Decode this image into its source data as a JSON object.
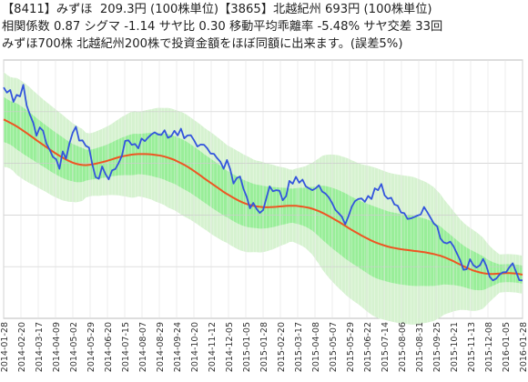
{
  "header": {
    "stock_a": "【8411】みずほ",
    "price_a": "209.3円",
    "unit_a": "(100株単位)",
    "stock_b": "【3865】北越紀州",
    "price_b": "693円",
    "unit_b": "(100株単位)",
    "correlation": "相関係数 0.87",
    "sigma": "シグマ -1.14",
    "spread_ratio": "サヤ比 0.30",
    "ma_deviation": "移動平均乖離率 -5.48%",
    "cross_count": "サヤ交差 33回",
    "note": "みずほ700株 北越紀州200株で投資金額をほぼ同額に出来ます。(誤差5%)"
  },
  "chart_data": {
    "type": "line",
    "title": "",
    "xlabel": "",
    "ylabel": "",
    "ylim": [
      0,
      1
    ],
    "grid": true,
    "x_tick_labels": [
      "2014-01-28",
      "2014-02-20",
      "2014-03-17",
      "2014-04-09",
      "2014-05-02",
      "2014-05-29",
      "2014-06-20",
      "2014-07-15",
      "2014-08-07",
      "2014-08-29",
      "2014-09-24",
      "2014-10-20",
      "2014-11-12",
      "2014-12-05",
      "2015-01-05",
      "2015-01-28",
      "2015-02-20",
      "2015-03-17",
      "2015-04-08",
      "2015-05-07",
      "2015-05-29",
      "2015-06-22",
      "2015-07-14",
      "2015-08-06",
      "2015-08-31",
      "2015-09-25",
      "2015-10-21",
      "2015-11-13",
      "2015-12-08",
      "2016-01-05",
      "2016-01-28"
    ],
    "colors": {
      "spread": "#3355dd",
      "moving_average": "#ee5522",
      "band_inner": "#99ee99",
      "band_outer": "#d6f2d0",
      "grid": "#cccccc"
    },
    "series": [
      {
        "role": "spread",
        "values": [
          0.894,
          0.874,
          0.884,
          0.838,
          0.865,
          0.859,
          0.904,
          0.824,
          0.788,
          0.757,
          0.707,
          0.739,
          0.726,
          0.677,
          0.653,
          0.625,
          0.616,
          0.579,
          0.646,
          0.618,
          0.676,
          0.718,
          0.742,
          0.688,
          0.689,
          0.668,
          0.661,
          0.596,
          0.547,
          0.54,
          0.588,
          0.559,
          0.538,
          0.573,
          0.578,
          0.601,
          0.629,
          0.687,
          0.689,
          0.672,
          0.675,
          0.658,
          0.696,
          0.686,
          0.7,
          0.712,
          0.72,
          0.712,
          0.71,
          0.728,
          0.699,
          0.705,
          0.726,
          0.708,
          0.734,
          0.697,
          0.708,
          0.709,
          0.689,
          0.665,
          0.673,
          0.672,
          0.658,
          0.638,
          0.637,
          0.62,
          0.606,
          0.579,
          0.613,
          0.577,
          0.522,
          0.543,
          0.549,
          0.502,
          0.47,
          0.426,
          0.447,
          0.424,
          0.408,
          0.419,
          0.465,
          0.511,
          0.492,
          0.496,
          0.494,
          0.457,
          0.473,
          0.532,
          0.521,
          0.548,
          0.525,
          0.537,
          0.511,
          0.503,
          0.496,
          0.503,
          0.515,
          0.491,
          0.483,
          0.468,
          0.447,
          0.42,
          0.407,
          0.393,
          0.364,
          0.395,
          0.432,
          0.454,
          0.462,
          0.464,
          0.451,
          0.474,
          0.462,
          0.503,
          0.496,
          0.52,
          0.476,
          0.463,
          0.467,
          0.441,
          0.436,
          0.41,
          0.407,
          0.385,
          0.387,
          0.392,
          0.398,
          0.402,
          0.431,
          0.411,
          0.389,
          0.367,
          0.356,
          0.309,
          0.294,
          0.29,
          0.297,
          0.279,
          0.252,
          0.225,
          0.188,
          0.19,
          0.229,
          0.206,
          0.197,
          0.205,
          0.23,
          0.202,
          0.161,
          0.147,
          0.154,
          0.169,
          0.178,
          0.179,
          0.198,
          0.213,
          0.181,
          0.148,
          0.147
        ]
      },
      {
        "role": "moving_average",
        "values": [
          0.77,
          0.762,
          0.754,
          0.745,
          0.735,
          0.724,
          0.713,
          0.702,
          0.69,
          0.679,
          0.668,
          0.657,
          0.646,
          0.636,
          0.626,
          0.617,
          0.609,
          0.602,
          0.597,
          0.594,
          0.593,
          0.594,
          0.597,
          0.6,
          0.604,
          0.608,
          0.613,
          0.618,
          0.623,
          0.627,
          0.63,
          0.633,
          0.635,
          0.636,
          0.636,
          0.636,
          0.635,
          0.633,
          0.631,
          0.628,
          0.623,
          0.618,
          0.612,
          0.604,
          0.596,
          0.587,
          0.577,
          0.566,
          0.555,
          0.543,
          0.532,
          0.521,
          0.51,
          0.499,
          0.488,
          0.478,
          0.469,
          0.46,
          0.452,
          0.445,
          0.44,
          0.436,
          0.433,
          0.431,
          0.43,
          0.43,
          0.431,
          0.432,
          0.434,
          0.435,
          0.436,
          0.436,
          0.435,
          0.433,
          0.43,
          0.427,
          0.422,
          0.416,
          0.409,
          0.401,
          0.392,
          0.383,
          0.374,
          0.364,
          0.354,
          0.344,
          0.335,
          0.326,
          0.317,
          0.309,
          0.301,
          0.294,
          0.288,
          0.283,
          0.278,
          0.274,
          0.271,
          0.268,
          0.266,
          0.264,
          0.262,
          0.26,
          0.258,
          0.256,
          0.253,
          0.25,
          0.246,
          0.242,
          0.236,
          0.229,
          0.222,
          0.214,
          0.206,
          0.198,
          0.191,
          0.185,
          0.18,
          0.176,
          0.173,
          0.172,
          0.172,
          0.173,
          0.174,
          0.175,
          0.175,
          0.174,
          0.172,
          0.169
        ]
      }
    ]
  }
}
